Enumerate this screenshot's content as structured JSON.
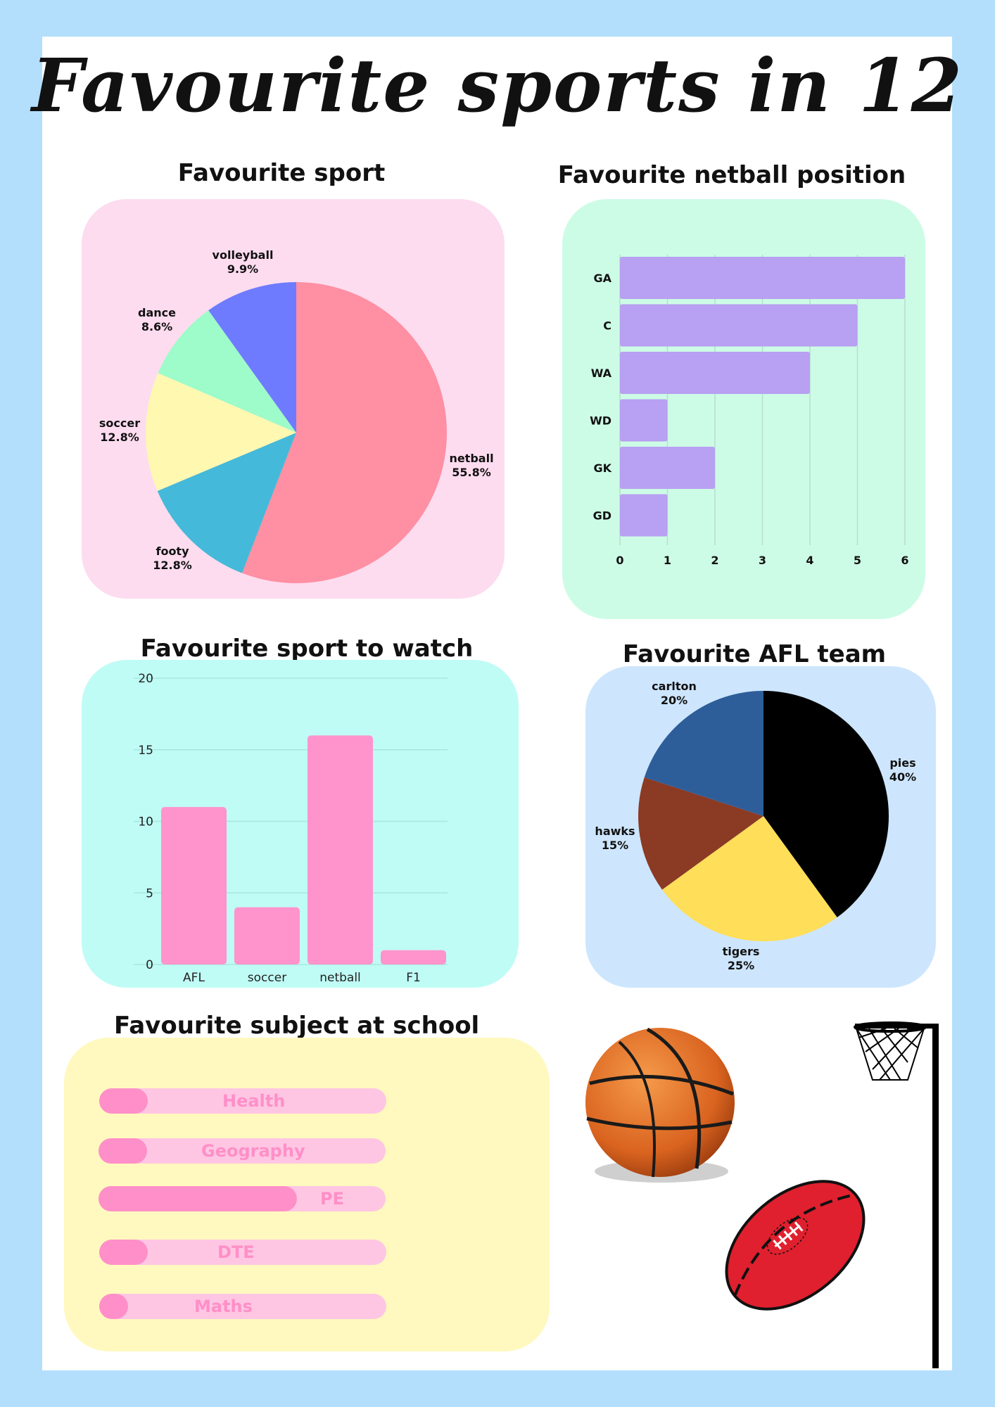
{
  "title": "Favourite sports in 12",
  "colors": {
    "page_border": "#b3dffc",
    "sport_panel": "#fddcef",
    "netball_panel": "#cdfce6",
    "watch_panel": "#c0fcf6",
    "afl_panel": "#cde6fd",
    "subject_panel": "#fff9bf",
    "netball_bar": "#b8a0f2",
    "watch_bar": "#ff94cc",
    "subject_fill": "#ff8fc8",
    "subject_track": "#ffc6e3"
  },
  "sections": {
    "sport": "Favourite sport",
    "netball": "Favourite netball position",
    "watch": "Favourite sport to watch",
    "afl": "Favourite AFL team",
    "subject": "Favourite subject at school"
  },
  "chart_data": [
    {
      "id": "favourite-sport",
      "type": "pie",
      "title": "Favourite sport",
      "slices": [
        {
          "label": "netball",
          "value": 55.8,
          "display": "55.8%",
          "color": "#ff8fa3"
        },
        {
          "label": "footy",
          "value": 12.8,
          "display": "12.8%",
          "color": "#45b9d9"
        },
        {
          "label": "soccer",
          "value": 12.8,
          "display": "12.8%",
          "color": "#fff8b0"
        },
        {
          "label": "dance",
          "value": 8.6,
          "display": "8.6%",
          "color": "#9dfcc9"
        },
        {
          "label": "volleyball",
          "value": 9.9,
          "display": "9.9%",
          "color": "#6e7bff"
        }
      ]
    },
    {
      "id": "favourite-netball-position",
      "type": "bar",
      "orientation": "horizontal",
      "title": "Favourite netball position",
      "categories": [
        "GA",
        "C",
        "WA",
        "WD",
        "GK",
        "GD"
      ],
      "values": [
        6,
        5,
        4,
        1,
        2,
        1
      ],
      "xlim": [
        0,
        6
      ],
      "xticks": [
        0,
        1,
        2,
        3,
        4,
        5,
        6
      ],
      "grid": true
    },
    {
      "id": "favourite-sport-to-watch",
      "type": "bar",
      "title": "Favourite sport to watch",
      "categories": [
        "AFL",
        "soccer",
        "netball",
        "F1"
      ],
      "values": [
        11,
        4,
        16,
        1
      ],
      "ylim": [
        0,
        20
      ],
      "yticks": [
        0,
        5,
        10,
        15,
        20
      ],
      "grid": true
    },
    {
      "id": "favourite-afl-team",
      "type": "pie",
      "title": "Favourite AFL team",
      "slices": [
        {
          "label": "pies",
          "value": 40,
          "display": "40%",
          "color": "#000000"
        },
        {
          "label": "tigers",
          "value": 25,
          "display": "25%",
          "color": "#ffde59"
        },
        {
          "label": "hawks",
          "value": 15,
          "display": "15%",
          "color": "#8b3a24"
        },
        {
          "label": "carlton",
          "value": 20,
          "display": "20%",
          "color": "#2e5e99"
        }
      ]
    },
    {
      "id": "favourite-subject",
      "type": "bar",
      "orientation": "horizontal",
      "title": "Favourite subject at school",
      "categories": [
        "Health",
        "Geography",
        "PE",
        "DTE",
        "Maths"
      ],
      "fractions": [
        0.17,
        0.17,
        0.69,
        0.17,
        0.1
      ]
    }
  ]
}
